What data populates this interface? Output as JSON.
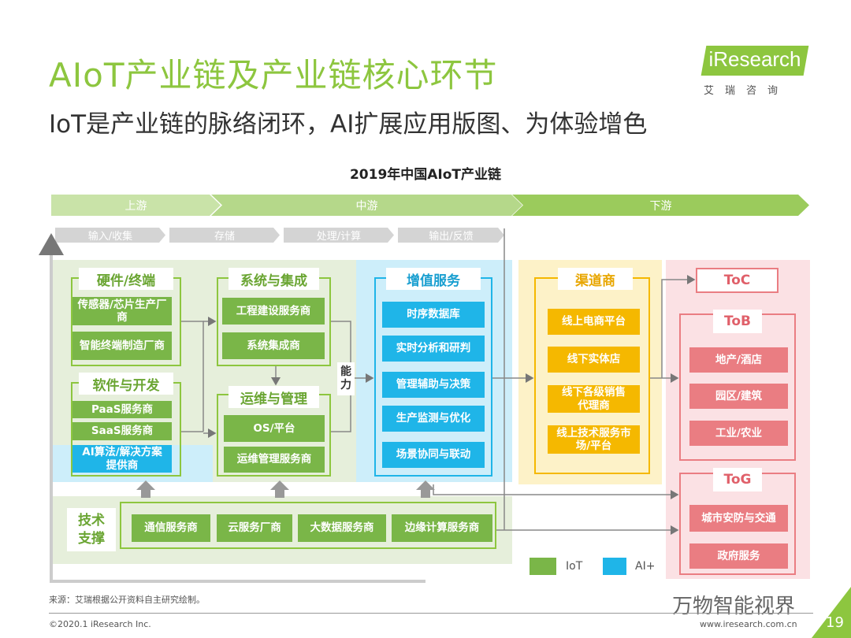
{
  "header": {
    "title": "AIoT产业链及产业链核心环节",
    "subtitle": "IoT是产业链的脉络闭环，AI扩展应用版图、为体验增色",
    "logo": "iResearch",
    "logo_cn": "艾瑞咨询"
  },
  "diagram": {
    "title": "2019年中国AIoT产业链",
    "stages": [
      "上游",
      "中游",
      "下游"
    ],
    "steps": [
      "输入/收集",
      "存储",
      "处理/计算",
      "输出/反馈"
    ],
    "hardware": {
      "label": "硬件/终端",
      "items": [
        "传感器/芯片生产厂商",
        "智能终端制造厂商"
      ]
    },
    "software": {
      "label": "软件与开发",
      "items": [
        "PaaS服务商",
        "SaaS服务商",
        "AI算法/解决方案提供商"
      ]
    },
    "system": {
      "label": "系统与集成",
      "items": [
        "工程建设服务商",
        "系统集成商"
      ]
    },
    "ops": {
      "label": "运维与管理",
      "items": [
        "OS/平台",
        "运维管理服务商"
      ]
    },
    "capability": "能力",
    "value_added": {
      "label": "增值服务",
      "items": [
        "时序数据库",
        "实时分析和研判",
        "管理辅助与决策",
        "生产监测与优化",
        "场景协同与联动"
      ]
    },
    "tech": {
      "label": "技术支撑",
      "items": [
        "通信服务商",
        "云服务厂商",
        "大数据服务商",
        "边缘计算服务商"
      ]
    },
    "channel": {
      "label": "渠道商",
      "items": [
        "线上电商平台",
        "线下实体店",
        "线下各级销售代理商",
        "线上技术服务市场/平台"
      ]
    },
    "toc": "ToC",
    "tob": {
      "label": "ToB",
      "items": [
        "地产/酒店",
        "园区/建筑",
        "工业/农业"
      ]
    },
    "tog": {
      "label": "ToG",
      "items": [
        "城市安防与交通",
        "政府服务"
      ]
    },
    "legend": [
      {
        "label": "IoT",
        "color": "#7ab648"
      },
      {
        "label": "AI+",
        "color": "#1fb5e8"
      }
    ]
  },
  "footer": {
    "source": "来源：艾瑞根据公开资料自主研究绘制。",
    "copyright": "©2020.1 iResearch Inc.",
    "url": "www.iresearch.com.cn",
    "page": "19",
    "watermark": "万物智能视界"
  }
}
